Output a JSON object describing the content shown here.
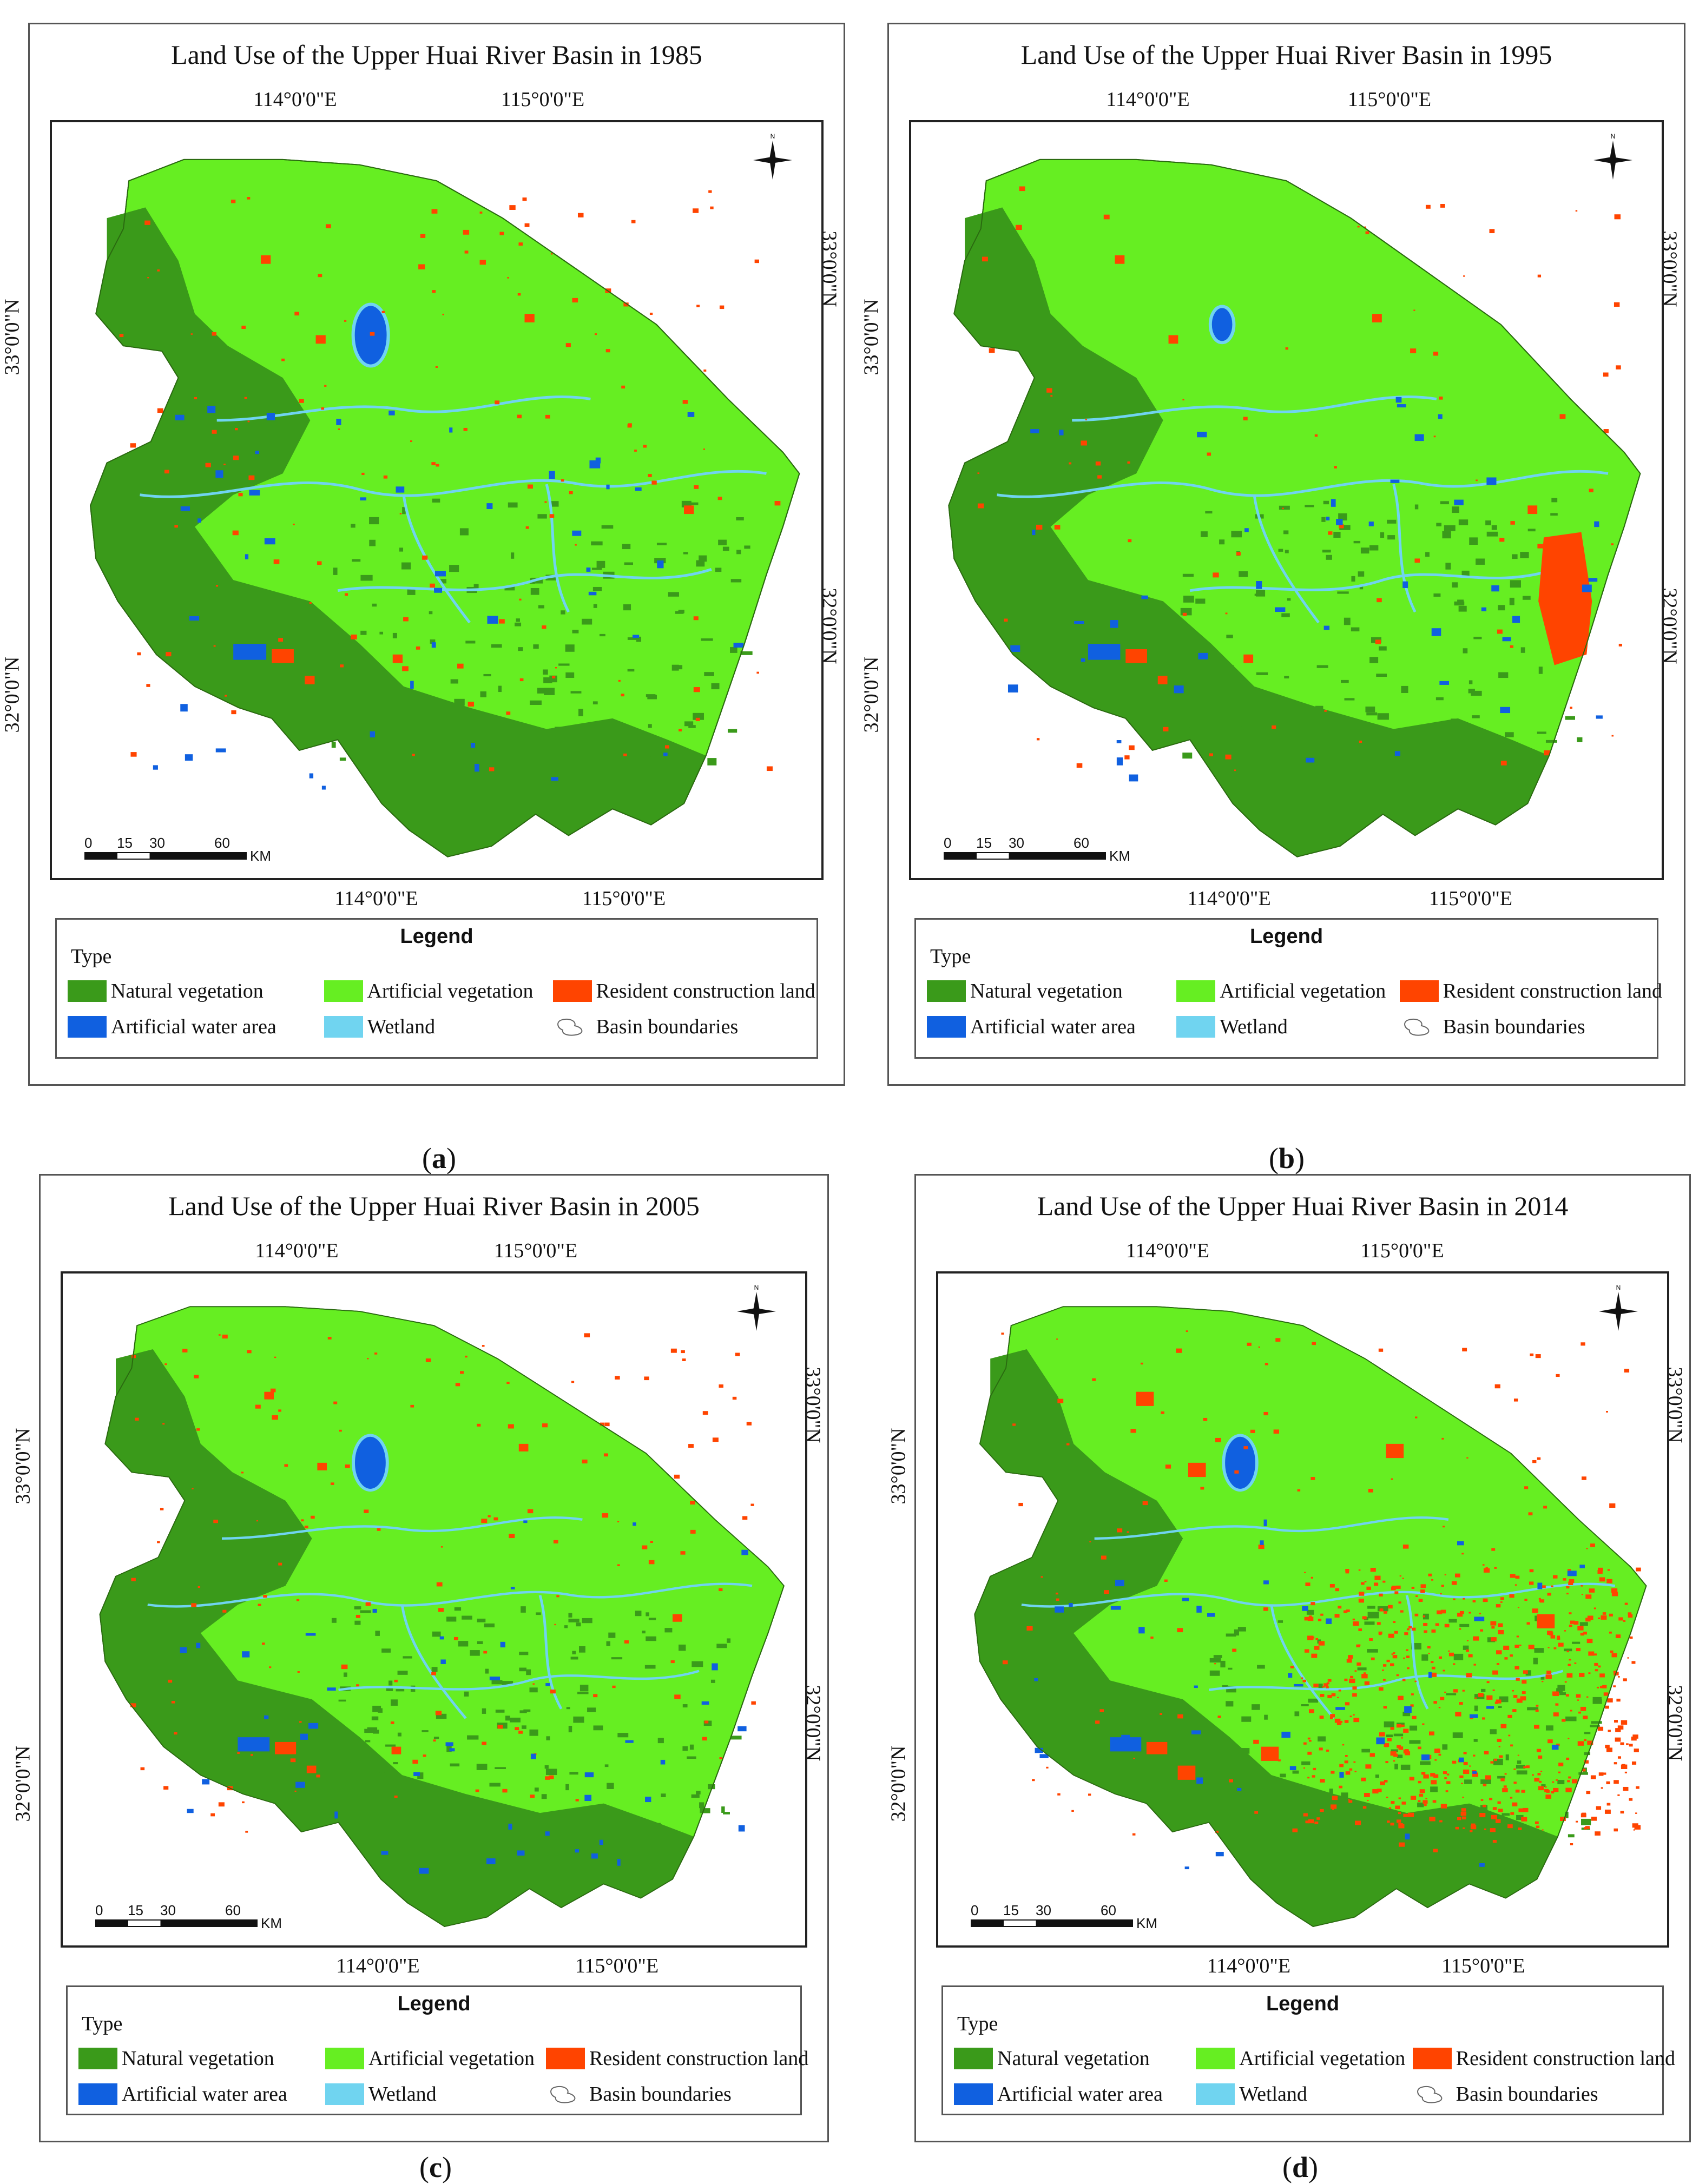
{
  "colors": {
    "natural_vegetation": "#3a9a1a",
    "artificial_vegetation": "#66ee22",
    "resident_construction_land": "#ff4400",
    "artificial_water_area": "#1060e0",
    "wetland": "#70d4f0"
  },
  "legend": {
    "title": "Legend",
    "type_label": "Type",
    "items": [
      {
        "label": "Natural vegetation",
        "color": "#3a9a1a"
      },
      {
        "label": "Artificial vegetation",
        "color": "#66ee22"
      },
      {
        "label": "Resident construction land",
        "color": "#ff4400"
      },
      {
        "label": "Artificial water area",
        "color": "#1060e0"
      },
      {
        "label": "Wetland",
        "color": "#70d4f0"
      },
      {
        "label": "Basin boundaries",
        "icon": "boundary-outline-icon"
      }
    ]
  },
  "axes": {
    "lon_ticks": [
      "114°0'0\"E",
      "115°0'0\"E"
    ],
    "lat_ticks": [
      "33°0'0\"N",
      "32°0'0\"N"
    ]
  },
  "scale_bar": {
    "labels": [
      "0",
      "15",
      "30",
      "60"
    ],
    "unit": "KM"
  },
  "north_arrow": {
    "label": "N",
    "icon": "north-arrow-icon"
  },
  "panels": [
    {
      "title": "Land Use of the Upper Huai River Basin in 1985",
      "caption_letter": "a"
    },
    {
      "title": "Land Use of the Upper Huai River Basin in 1995",
      "caption_letter": "b"
    },
    {
      "title": "Land Use of the Upper Huai River Basin in 2005",
      "caption_letter": "c"
    },
    {
      "title": "Land Use of the Upper Huai River Basin in 2014",
      "caption_letter": "d"
    }
  ]
}
